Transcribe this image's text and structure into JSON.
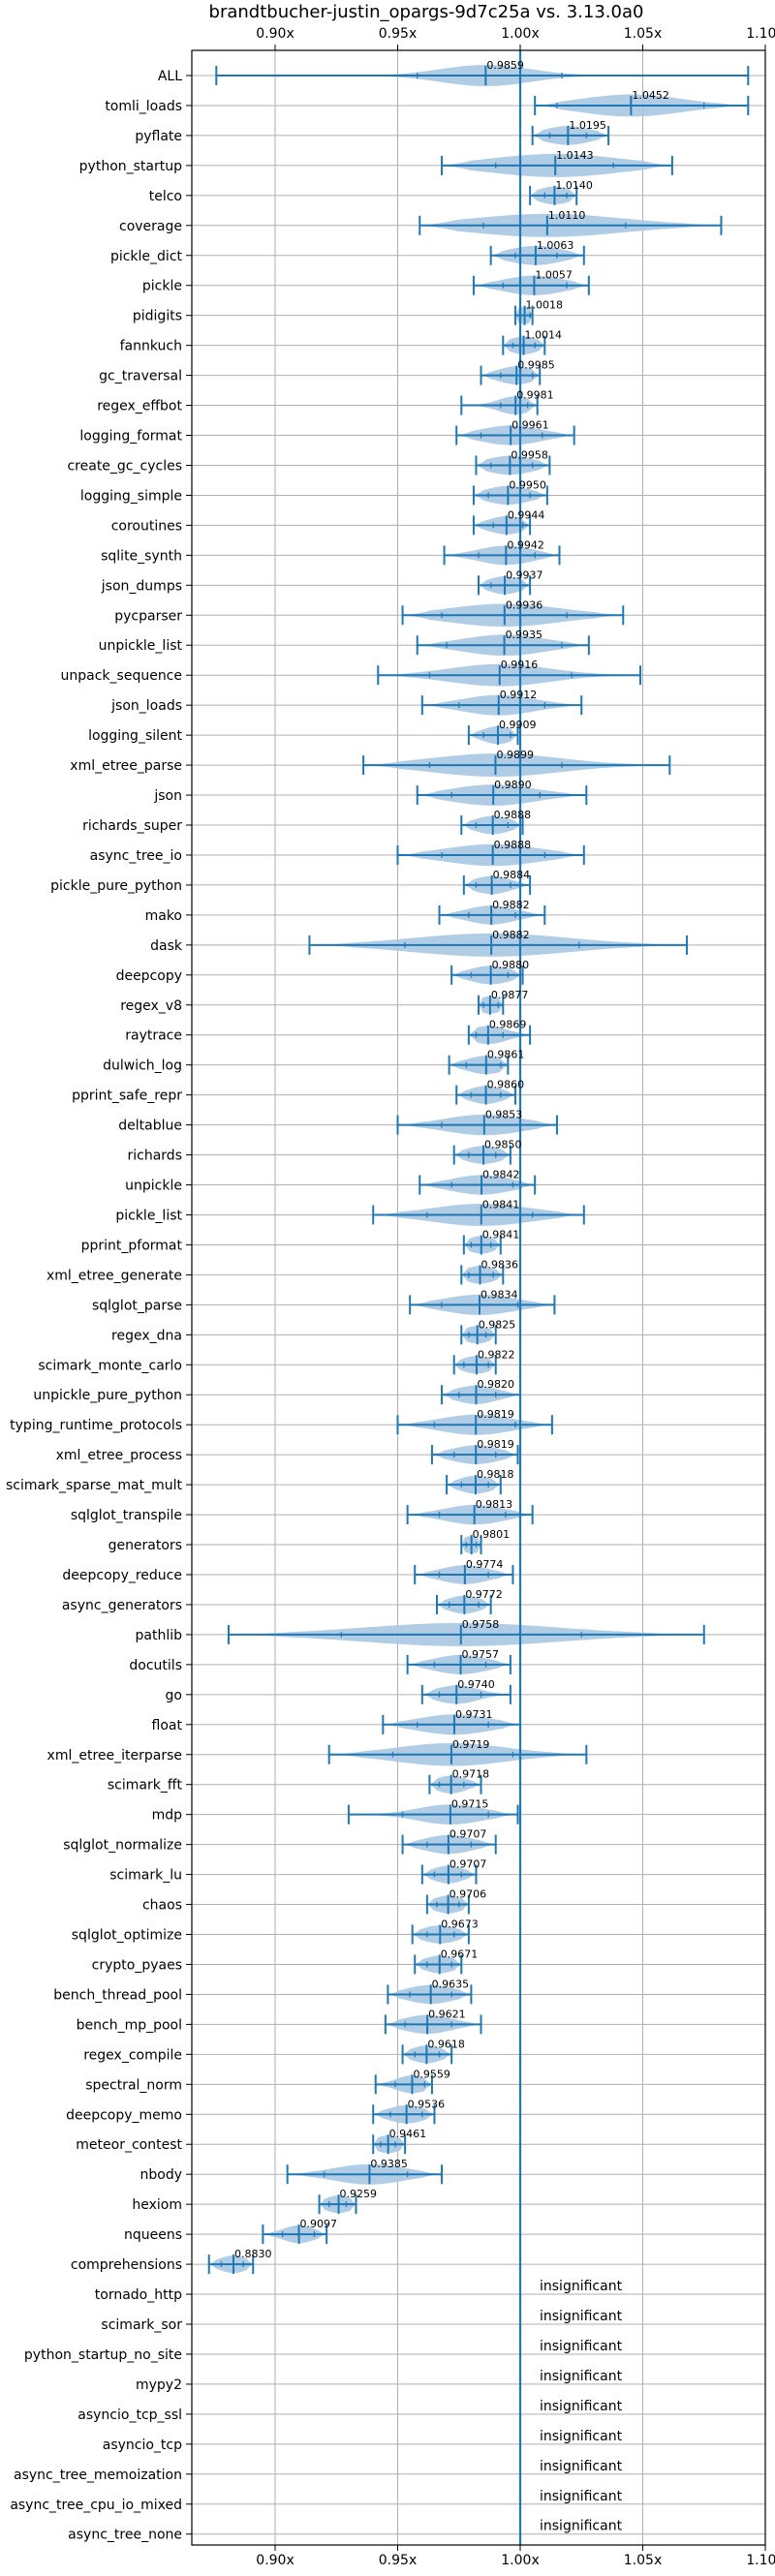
{
  "chart_data": {
    "type": "violin",
    "title": "brandtbucher-justin_opargs-9d7c25a vs. 3.13.0a0",
    "xlim": [
      0.866,
      1.1
    ],
    "x_ticks": [
      {
        "value": 0.9,
        "label": "0.90x"
      },
      {
        "value": 0.95,
        "label": "0.95x"
      },
      {
        "value": 1.0,
        "label": "1.00x"
      },
      {
        "value": 1.05,
        "label": "1.05x"
      },
      {
        "value": 1.1,
        "label": "1.10x"
      }
    ],
    "reference_line": 1.0,
    "grid": true,
    "colors": {
      "violin_fill": "#a9c8e3",
      "line": "#1f77b4",
      "grid": "#b0b0b0",
      "reference_line": "#1f77b4"
    },
    "benchmarks": [
      {
        "name": "ALL",
        "mean": 0.9859,
        "min": 0.876,
        "max": 1.093,
        "q1": 0.958,
        "q3": 1.017,
        "spread": 0.026,
        "label": "0.9859"
      },
      {
        "name": "tomli_loads",
        "mean": 1.0452,
        "min": 1.006,
        "max": 1.093,
        "q1": 1.015,
        "q3": 1.075,
        "spread": 0.03,
        "label": "1.0452"
      },
      {
        "name": "pyflate",
        "mean": 1.0195,
        "min": 1.005,
        "max": 1.036,
        "q1": 1.012,
        "q3": 1.027,
        "spread": 0.012,
        "label": "1.0195"
      },
      {
        "name": "python_startup",
        "mean": 1.0143,
        "min": 0.968,
        "max": 1.062,
        "q1": 0.99,
        "q3": 1.038,
        "spread": 0.04,
        "label": "1.0143"
      },
      {
        "name": "telco",
        "mean": 1.014,
        "min": 1.004,
        "max": 1.023,
        "q1": 1.01,
        "q3": 1.019,
        "spread": 0.007,
        "label": "1.0140"
      },
      {
        "name": "coverage",
        "mean": 1.011,
        "min": 0.959,
        "max": 1.082,
        "q1": 0.985,
        "q3": 1.043,
        "spread": 0.048,
        "label": "1.0110"
      },
      {
        "name": "pickle_dict",
        "mean": 1.0063,
        "min": 0.988,
        "max": 1.026,
        "q1": 0.998,
        "q3": 1.015,
        "spread": 0.014,
        "label": "1.0063"
      },
      {
        "name": "pickle",
        "mean": 1.0057,
        "min": 0.981,
        "max": 1.028,
        "q1": 0.993,
        "q3": 1.019,
        "spread": 0.016,
        "label": "1.0057"
      },
      {
        "name": "pidigits",
        "mean": 1.0018,
        "min": 0.998,
        "max": 1.005,
        "q1": 1.0,
        "q3": 1.004,
        "spread": 0.003,
        "label": "1.0018"
      },
      {
        "name": "fannkuch",
        "mean": 1.0014,
        "min": 0.993,
        "max": 1.01,
        "q1": 0.997,
        "q3": 1.006,
        "spread": 0.006,
        "label": "1.0014"
      },
      {
        "name": "gc_traversal",
        "mean": 0.9985,
        "min": 0.984,
        "max": 1.008,
        "q1": 0.992,
        "q3": 1.005,
        "spread": 0.008,
        "label": "0.9985"
      },
      {
        "name": "regex_effbot",
        "mean": 0.9981,
        "min": 0.976,
        "max": 1.007,
        "q1": 0.992,
        "q3": 1.003,
        "spread": 0.007,
        "label": "0.9981"
      },
      {
        "name": "logging_format",
        "mean": 0.9961,
        "min": 0.974,
        "max": 1.022,
        "q1": 0.984,
        "q3": 1.009,
        "spread": 0.016,
        "label": "0.9961"
      },
      {
        "name": "create_gc_cycles",
        "mean": 0.9958,
        "min": 0.982,
        "max": 1.012,
        "q1": 0.988,
        "q3": 1.005,
        "spread": 0.012,
        "label": "0.9958"
      },
      {
        "name": "logging_simple",
        "mean": 0.995,
        "min": 0.981,
        "max": 1.011,
        "q1": 0.987,
        "q3": 1.004,
        "spread": 0.011,
        "label": "0.9950"
      },
      {
        "name": "coroutines",
        "mean": 0.9944,
        "min": 0.981,
        "max": 1.004,
        "q1": 0.989,
        "q3": 1.001,
        "spread": 0.008,
        "label": "0.9944"
      },
      {
        "name": "sqlite_synth",
        "mean": 0.9942,
        "min": 0.969,
        "max": 1.016,
        "q1": 0.983,
        "q3": 1.006,
        "spread": 0.014,
        "label": "0.9942"
      },
      {
        "name": "json_dumps",
        "mean": 0.9937,
        "min": 0.983,
        "max": 1.004,
        "q1": 0.988,
        "q3": 1.0,
        "spread": 0.007,
        "label": "0.9937"
      },
      {
        "name": "pycparser",
        "mean": 0.9936,
        "min": 0.952,
        "max": 1.042,
        "q1": 0.968,
        "q3": 1.019,
        "spread": 0.034,
        "label": "0.9936"
      },
      {
        "name": "unpickle_list",
        "mean": 0.9935,
        "min": 0.958,
        "max": 1.028,
        "q1": 0.97,
        "q3": 1.017,
        "spread": 0.024,
        "label": "0.9935"
      },
      {
        "name": "unpack_sequence",
        "mean": 0.9916,
        "min": 0.942,
        "max": 1.049,
        "q1": 0.963,
        "q3": 1.021,
        "spread": 0.03,
        "label": "0.9916"
      },
      {
        "name": "json_loads",
        "mean": 0.9912,
        "min": 0.96,
        "max": 1.025,
        "q1": 0.975,
        "q3": 1.01,
        "spread": 0.02,
        "label": "0.9912"
      },
      {
        "name": "logging_silent",
        "mean": 0.9909,
        "min": 0.979,
        "max": 0.999,
        "q1": 0.985,
        "q3": 0.996,
        "spread": 0.006,
        "label": "0.9909"
      },
      {
        "name": "xml_etree_parse",
        "mean": 0.9899,
        "min": 0.936,
        "max": 1.061,
        "q1": 0.963,
        "q3": 1.017,
        "spread": 0.04,
        "label": "0.9899"
      },
      {
        "name": "json",
        "mean": 0.989,
        "min": 0.958,
        "max": 1.027,
        "q1": 0.972,
        "q3": 1.008,
        "spread": 0.024,
        "label": "0.9890"
      },
      {
        "name": "richards_super",
        "mean": 0.9888,
        "min": 0.976,
        "max": 1.001,
        "q1": 0.982,
        "q3": 0.995,
        "spread": 0.008,
        "label": "0.9888"
      },
      {
        "name": "async_tree_io",
        "mean": 0.9888,
        "min": 0.95,
        "max": 1.026,
        "q1": 0.968,
        "q3": 1.01,
        "spread": 0.028,
        "label": "0.9888"
      },
      {
        "name": "pickle_pure_python",
        "mean": 0.9884,
        "min": 0.977,
        "max": 1.004,
        "q1": 0.982,
        "q3": 0.996,
        "spread": 0.008,
        "label": "0.9884"
      },
      {
        "name": "mako",
        "mean": 0.9882,
        "min": 0.967,
        "max": 1.01,
        "q1": 0.979,
        "q3": 0.998,
        "spread": 0.012,
        "label": "0.9882"
      },
      {
        "name": "dask",
        "mean": 0.9882,
        "min": 0.914,
        "max": 1.068,
        "q1": 0.953,
        "q3": 1.024,
        "spread": 0.05,
        "label": "0.9882"
      },
      {
        "name": "deepcopy",
        "mean": 0.988,
        "min": 0.972,
        "max": 1.001,
        "q1": 0.98,
        "q3": 0.995,
        "spread": 0.01,
        "label": "0.9880"
      },
      {
        "name": "regex_v8",
        "mean": 0.9877,
        "min": 0.983,
        "max": 0.993,
        "q1": 0.985,
        "q3": 0.991,
        "spread": 0.004,
        "label": "0.9877"
      },
      {
        "name": "raytrace",
        "mean": 0.9869,
        "min": 0.979,
        "max": 1.004,
        "q1": 0.982,
        "q3": 0.993,
        "spread": 0.008,
        "label": "0.9869"
      },
      {
        "name": "dulwich_log",
        "mean": 0.9861,
        "min": 0.971,
        "max": 0.995,
        "q1": 0.978,
        "q3": 0.992,
        "spread": 0.009,
        "label": "0.9861"
      },
      {
        "name": "pprint_safe_repr",
        "mean": 0.986,
        "min": 0.974,
        "max": 0.998,
        "q1": 0.98,
        "q3": 0.992,
        "spread": 0.007,
        "label": "0.9860"
      },
      {
        "name": "deltablue",
        "mean": 0.9853,
        "min": 0.95,
        "max": 1.015,
        "q1": 0.968,
        "q3": 1.0,
        "spread": 0.022,
        "label": "0.9853"
      },
      {
        "name": "richards",
        "mean": 0.985,
        "min": 0.973,
        "max": 0.996,
        "q1": 0.979,
        "q3": 0.99,
        "spread": 0.008,
        "label": "0.9850"
      },
      {
        "name": "unpickle",
        "mean": 0.9842,
        "min": 0.959,
        "max": 1.006,
        "q1": 0.972,
        "q3": 0.997,
        "spread": 0.016,
        "label": "0.9842"
      },
      {
        "name": "pickle_list",
        "mean": 0.9841,
        "min": 0.94,
        "max": 1.026,
        "q1": 0.962,
        "q3": 1.005,
        "spread": 0.03,
        "label": "0.9841"
      },
      {
        "name": "pprint_pformat",
        "mean": 0.9841,
        "min": 0.977,
        "max": 0.992,
        "q1": 0.98,
        "q3": 0.988,
        "spread": 0.005,
        "label": "0.9841"
      },
      {
        "name": "xml_etree_generate",
        "mean": 0.9836,
        "min": 0.976,
        "max": 0.993,
        "q1": 0.979,
        "q3": 0.989,
        "spread": 0.006,
        "label": "0.9836"
      },
      {
        "name": "sqlglot_parse",
        "mean": 0.9834,
        "min": 0.955,
        "max": 1.014,
        "q1": 0.968,
        "q3": 0.999,
        "spread": 0.02,
        "label": "0.9834"
      },
      {
        "name": "regex_dna",
        "mean": 0.9825,
        "min": 0.976,
        "max": 0.99,
        "q1": 0.979,
        "q3": 0.986,
        "spread": 0.005,
        "label": "0.9825"
      },
      {
        "name": "scimark_monte_carlo",
        "mean": 0.9822,
        "min": 0.973,
        "max": 0.99,
        "q1": 0.977,
        "q3": 0.987,
        "spread": 0.006,
        "label": "0.9822"
      },
      {
        "name": "unpickle_pure_python",
        "mean": 0.982,
        "min": 0.968,
        "max": 1.0,
        "q1": 0.975,
        "q3": 0.99,
        "spread": 0.01,
        "label": "0.9820"
      },
      {
        "name": "typing_runtime_protocols",
        "mean": 0.9819,
        "min": 0.95,
        "max": 1.013,
        "q1": 0.965,
        "q3": 0.998,
        "spread": 0.02,
        "label": "0.9819"
      },
      {
        "name": "xml_etree_process",
        "mean": 0.9819,
        "min": 0.964,
        "max": 0.999,
        "q1": 0.973,
        "q3": 0.99,
        "spread": 0.012,
        "label": "0.9819"
      },
      {
        "name": "scimark_sparse_mat_mult",
        "mean": 0.9818,
        "min": 0.97,
        "max": 0.992,
        "q1": 0.976,
        "q3": 0.987,
        "spread": 0.007,
        "label": "0.9818"
      },
      {
        "name": "sqlglot_transpile",
        "mean": 0.9813,
        "min": 0.954,
        "max": 1.005,
        "q1": 0.967,
        "q3": 0.994,
        "spread": 0.016,
        "label": "0.9813"
      },
      {
        "name": "generators",
        "mean": 0.9801,
        "min": 0.976,
        "max": 0.984,
        "q1": 0.978,
        "q3": 0.982,
        "spread": 0.003,
        "label": "0.9801"
      },
      {
        "name": "deepcopy_reduce",
        "mean": 0.9774,
        "min": 0.957,
        "max": 0.997,
        "q1": 0.967,
        "q3": 0.987,
        "spread": 0.012,
        "label": "0.9774"
      },
      {
        "name": "async_generators",
        "mean": 0.9772,
        "min": 0.966,
        "max": 0.988,
        "q1": 0.971,
        "q3": 0.983,
        "spread": 0.007,
        "label": "0.9772"
      },
      {
        "name": "pathlib",
        "mean": 0.9758,
        "min": 0.881,
        "max": 1.075,
        "q1": 0.927,
        "q3": 1.025,
        "spread": 0.064,
        "label": "0.9758"
      },
      {
        "name": "docutils",
        "mean": 0.9757,
        "min": 0.954,
        "max": 0.996,
        "q1": 0.965,
        "q3": 0.986,
        "spread": 0.014,
        "label": "0.9757"
      },
      {
        "name": "go",
        "mean": 0.974,
        "min": 0.96,
        "max": 0.996,
        "q1": 0.967,
        "q3": 0.984,
        "spread": 0.01,
        "label": "0.9740"
      },
      {
        "name": "float",
        "mean": 0.9731,
        "min": 0.944,
        "max": 1.0,
        "q1": 0.958,
        "q3": 0.987,
        "spread": 0.02,
        "label": "0.9731"
      },
      {
        "name": "xml_etree_iterparse",
        "mean": 0.9719,
        "min": 0.922,
        "max": 1.027,
        "q1": 0.948,
        "q3": 0.997,
        "spread": 0.034,
        "label": "0.9719"
      },
      {
        "name": "scimark_fft",
        "mean": 0.9718,
        "min": 0.963,
        "max": 0.984,
        "q1": 0.967,
        "q3": 0.977,
        "spread": 0.006,
        "label": "0.9718"
      },
      {
        "name": "mdp",
        "mean": 0.9715,
        "min": 0.93,
        "max": 0.999,
        "q1": 0.952,
        "q3": 0.987,
        "spread": 0.018,
        "label": "0.9715"
      },
      {
        "name": "sqlglot_normalize",
        "mean": 0.9707,
        "min": 0.952,
        "max": 0.99,
        "q1": 0.962,
        "q3": 0.98,
        "spread": 0.012,
        "label": "0.9707"
      },
      {
        "name": "scimark_lu",
        "mean": 0.9707,
        "min": 0.96,
        "max": 0.982,
        "q1": 0.965,
        "q3": 0.976,
        "spread": 0.006,
        "label": "0.9707"
      },
      {
        "name": "chaos",
        "mean": 0.9706,
        "min": 0.962,
        "max": 0.979,
        "q1": 0.966,
        "q3": 0.975,
        "spread": 0.006,
        "label": "0.9706"
      },
      {
        "name": "sqlglot_optimize",
        "mean": 0.9673,
        "min": 0.956,
        "max": 0.979,
        "q1": 0.962,
        "q3": 0.973,
        "spread": 0.008,
        "label": "0.9673"
      },
      {
        "name": "crypto_pyaes",
        "mean": 0.9671,
        "min": 0.957,
        "max": 0.976,
        "q1": 0.962,
        "q3": 0.972,
        "spread": 0.006,
        "label": "0.9671"
      },
      {
        "name": "bench_thread_pool",
        "mean": 0.9635,
        "min": 0.946,
        "max": 0.98,
        "q1": 0.955,
        "q3": 0.972,
        "spread": 0.012,
        "label": "0.9635"
      },
      {
        "name": "bench_mp_pool",
        "mean": 0.9621,
        "min": 0.945,
        "max": 0.984,
        "q1": 0.953,
        "q3": 0.972,
        "spread": 0.012,
        "label": "0.9621"
      },
      {
        "name": "regex_compile",
        "mean": 0.9618,
        "min": 0.952,
        "max": 0.972,
        "q1": 0.957,
        "q3": 0.967,
        "spread": 0.006,
        "label": "0.9618"
      },
      {
        "name": "spectral_norm",
        "mean": 0.9559,
        "min": 0.941,
        "max": 0.964,
        "q1": 0.949,
        "q3": 0.961,
        "spread": 0.006,
        "label": "0.9559"
      },
      {
        "name": "deepcopy_memo",
        "mean": 0.9536,
        "min": 0.94,
        "max": 0.965,
        "q1": 0.947,
        "q3": 0.96,
        "spread": 0.008,
        "label": "0.9536"
      },
      {
        "name": "meteor_contest",
        "mean": 0.9461,
        "min": 0.94,
        "max": 0.953,
        "q1": 0.943,
        "q3": 0.949,
        "spread": 0.005,
        "label": "0.9461"
      },
      {
        "name": "nbody",
        "mean": 0.9385,
        "min": 0.905,
        "max": 0.968,
        "q1": 0.92,
        "q3": 0.954,
        "spread": 0.02,
        "label": "0.9385"
      },
      {
        "name": "hexiom",
        "mean": 0.9259,
        "min": 0.918,
        "max": 0.933,
        "q1": 0.922,
        "q3": 0.929,
        "spread": 0.005,
        "label": "0.9259"
      },
      {
        "name": "nqueens",
        "mean": 0.9097,
        "min": 0.895,
        "max": 0.921,
        "q1": 0.903,
        "q3": 0.916,
        "spread": 0.006,
        "label": "0.9097"
      },
      {
        "name": "comprehensions",
        "mean": 0.883,
        "min": 0.873,
        "max": 0.891,
        "q1": 0.878,
        "q3": 0.887,
        "spread": 0.005,
        "label": "0.8830"
      }
    ],
    "insignificant": {
      "label": "insignificant",
      "names": [
        "tornado_http",
        "scimark_sor",
        "python_startup_no_site",
        "mypy2",
        "asyncio_tcp_ssl",
        "asyncio_tcp",
        "async_tree_memoization",
        "async_tree_cpu_io_mixed",
        "async_tree_none"
      ]
    }
  }
}
